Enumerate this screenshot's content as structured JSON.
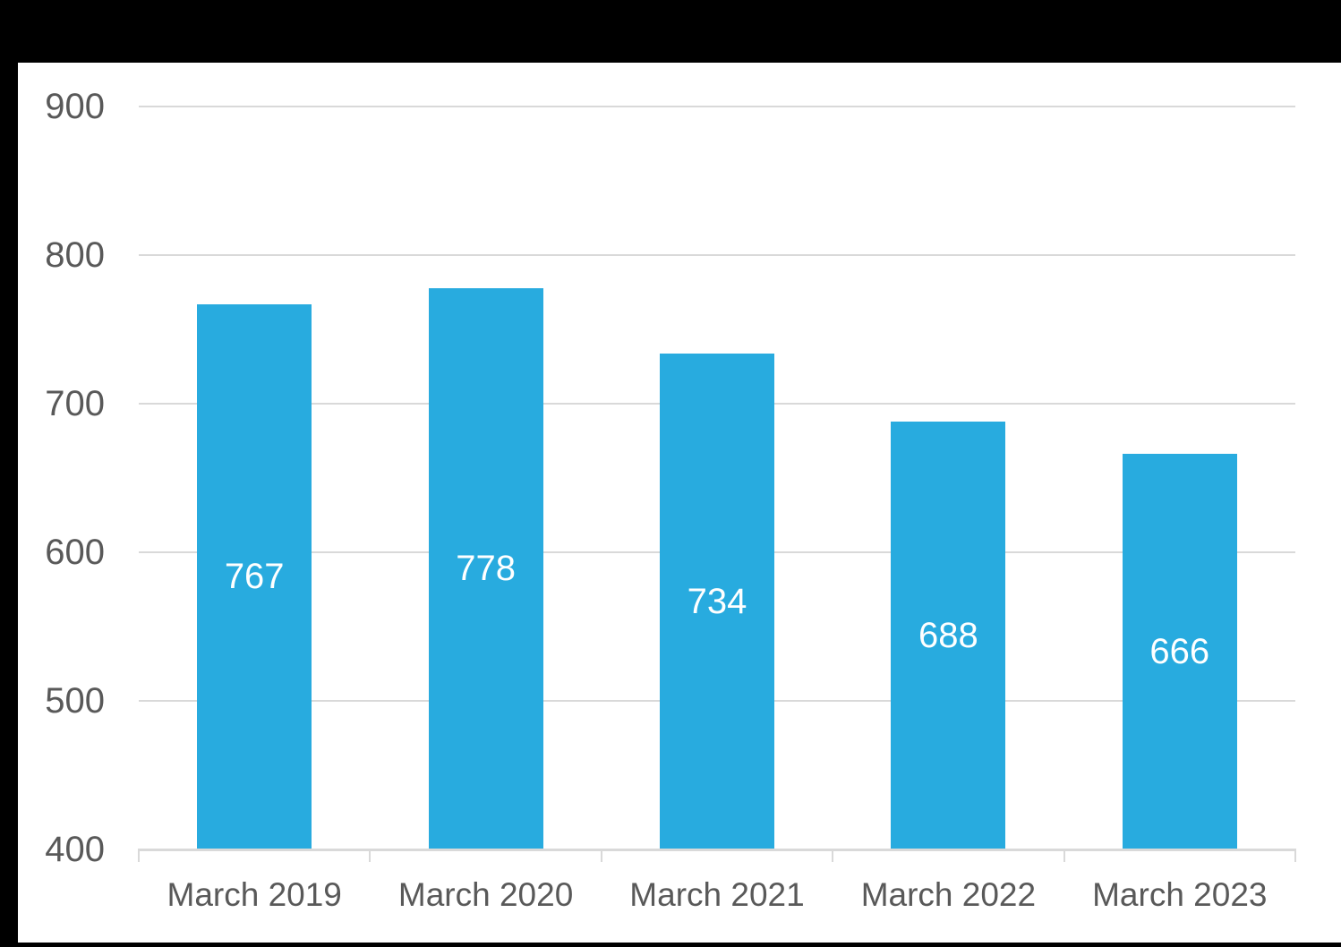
{
  "frame": {
    "outer_background": "#000000",
    "chart_background": "#FFFFFF"
  },
  "chart_data": {
    "type": "bar",
    "categories": [
      "March 2019",
      "March 2020",
      "March 2021",
      "March 2022",
      "March 2023"
    ],
    "values": [
      767,
      778,
      734,
      688,
      666
    ],
    "yticks": [
      900,
      800,
      700,
      600,
      500,
      400
    ],
    "ylim": [
      400,
      900
    ],
    "grid": true,
    "legend": "none",
    "data_label_position": "inside-center",
    "bar_color": "#28ABDF",
    "data_label_color": "#FFFFFF",
    "axis_text_color": "#595959",
    "gridline_color": "#D9D9D9",
    "axis_line_color": "#D9D9D9"
  }
}
